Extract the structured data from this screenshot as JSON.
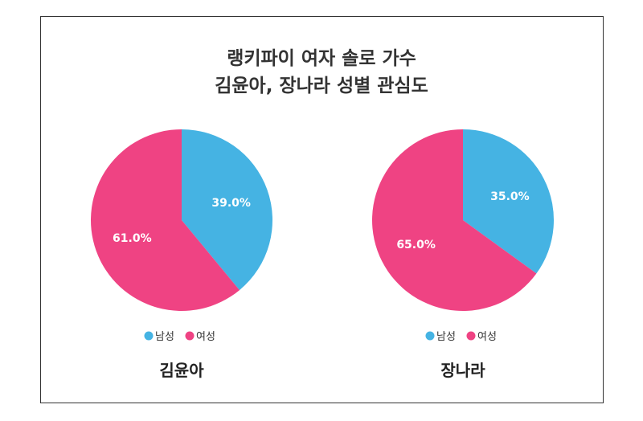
{
  "chart_data": [
    {
      "type": "pie",
      "title": "김윤아",
      "categories": [
        "남성",
        "여성"
      ],
      "values": [
        39.0,
        61.0
      ],
      "labels": [
        "39.0%",
        "61.0%"
      ],
      "legend": "bottom"
    },
    {
      "type": "pie",
      "title": "장나라",
      "categories": [
        "남성",
        "여성"
      ],
      "values": [
        35.0,
        65.0
      ],
      "labels": [
        "35.0%",
        "65.0%"
      ],
      "legend": "bottom"
    }
  ],
  "title_lines": [
    "랭키파이 여자 솔로 가수",
    "김윤아, 장나라 성별 관심도"
  ],
  "colors": [
    "#45b3e3",
    "#ef4383"
  ]
}
